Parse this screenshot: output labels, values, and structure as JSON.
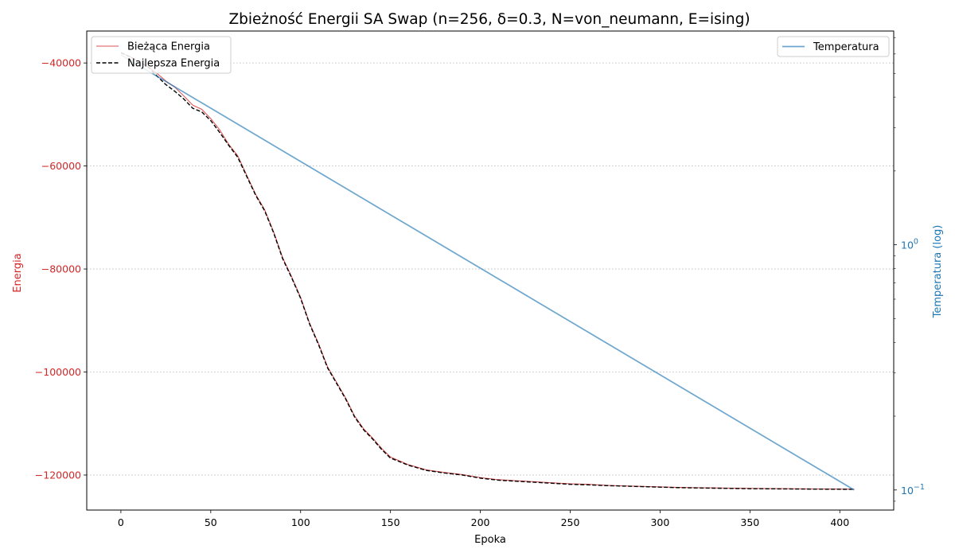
{
  "chart_data": {
    "type": "line",
    "title": "Zbieżność Energii SA Swap (n=256, δ=0.3, N=von_neumann, E=ising)",
    "xlabel": "Epoka",
    "ylabel": "Energia",
    "y2label": "Temperatura (log)",
    "xlim": [
      -19,
      430
    ],
    "ylim": [
      -126800,
      -33800
    ],
    "y2lim_log10": [
      -1.0818,
      0.8717
    ],
    "y2_scale": "log",
    "grid": "horizontal-dotted",
    "x_ticks": [
      0,
      50,
      100,
      150,
      200,
      250,
      300,
      350,
      400
    ],
    "x_tick_labels": [
      "0",
      "50",
      "100",
      "150",
      "200",
      "250",
      "300",
      "350",
      "400"
    ],
    "y_ticks": [
      -40000,
      -60000,
      -80000,
      -100000,
      -120000
    ],
    "y_tick_labels": [
      "−40000",
      "−60000",
      "−80000",
      "−100000",
      "−120000"
    ],
    "y2_major_ticks": [
      {
        "value": 1,
        "label_base": "10",
        "label_exp": "0"
      },
      {
        "value": 0.1,
        "label_base": "10",
        "label_exp": "−1"
      }
    ],
    "y2_minor_ticks": [
      0.09,
      0.2,
      0.3,
      0.4,
      0.5,
      0.6,
      0.7,
      0.8,
      0.9,
      2,
      3,
      4,
      5,
      6,
      7
    ],
    "colors": {
      "current": "#d62728",
      "best": "#000000",
      "temperature": "#1f77b4",
      "left_axis": "#d62728",
      "right_axis": "#1f77b4",
      "grid": "#b0b0b0"
    },
    "legend_left": {
      "position": "upper-left",
      "entries": [
        {
          "label": "Bieżąca Energia",
          "style": "solid-red"
        },
        {
          "label": "Najlepsza Energia",
          "style": "dashed-black"
        }
      ]
    },
    "legend_right": {
      "position": "upper-right",
      "entries": [
        {
          "label": "Temperatura",
          "style": "solid-blue"
        }
      ]
    },
    "series": [
      {
        "name": "Bieżąca Energia",
        "axis": "left",
        "x": [
          0,
          5,
          10,
          15,
          20,
          25,
          30,
          35,
          40,
          45,
          50,
          55,
          60,
          65,
          70,
          75,
          80,
          85,
          90,
          95,
          100,
          105,
          110,
          115,
          120,
          125,
          130,
          135,
          140,
          145,
          150,
          160,
          170,
          180,
          190,
          200,
          210,
          220,
          230,
          240,
          250,
          260,
          270,
          280,
          290,
          300,
          310,
          320,
          330,
          340,
          350,
          360,
          370,
          380,
          390,
          400,
          408
        ],
        "y": [
          -38000,
          -38800,
          -39700,
          -40700,
          -42000,
          -43500,
          -44700,
          -46400,
          -48200,
          -49000,
          -50800,
          -53000,
          -55800,
          -58000,
          -61800,
          -65500,
          -68500,
          -72800,
          -77800,
          -81500,
          -85500,
          -90500,
          -94500,
          -99000,
          -102000,
          -105000,
          -108500,
          -111000,
          -112800,
          -114800,
          -116500,
          -118000,
          -119000,
          -119500,
          -119900,
          -120500,
          -120900,
          -121100,
          -121300,
          -121500,
          -121700,
          -121800,
          -122000,
          -122100,
          -122200,
          -122300,
          -122400,
          -122450,
          -122500,
          -122550,
          -122600,
          -122620,
          -122650,
          -122680,
          -122700,
          -122720,
          -122750
        ]
      },
      {
        "name": "Najlepsza Energia",
        "axis": "left",
        "x": [
          0,
          5,
          10,
          15,
          20,
          25,
          30,
          35,
          40,
          45,
          50,
          55,
          60,
          65,
          70,
          75,
          80,
          85,
          90,
          95,
          100,
          105,
          110,
          115,
          120,
          125,
          130,
          135,
          140,
          145,
          150,
          160,
          170,
          180,
          190,
          200,
          210,
          220,
          230,
          240,
          250,
          260,
          270,
          280,
          290,
          300,
          310,
          320,
          330,
          340,
          350,
          360,
          370,
          380,
          390,
          400,
          408
        ],
        "y": [
          -38000,
          -38800,
          -39700,
          -40700,
          -42500,
          -44200,
          -45500,
          -47000,
          -48800,
          -49500,
          -51200,
          -53500,
          -56000,
          -58300,
          -62000,
          -65700,
          -68700,
          -73000,
          -78000,
          -81700,
          -85700,
          -90700,
          -94700,
          -99200,
          -102200,
          -105200,
          -108700,
          -111200,
          -113000,
          -115000,
          -116700,
          -118100,
          -119100,
          -119600,
          -120000,
          -120600,
          -121000,
          -121200,
          -121400,
          -121600,
          -121800,
          -121900,
          -122050,
          -122150,
          -122250,
          -122350,
          -122450,
          -122500,
          -122550,
          -122600,
          -122650,
          -122670,
          -122700,
          -122720,
          -122740,
          -122760,
          -122780
        ]
      },
      {
        "name": "Temperatura",
        "axis": "right",
        "x": [
          0,
          408
        ],
        "y": [
          5.95,
          0.1
        ]
      }
    ]
  }
}
